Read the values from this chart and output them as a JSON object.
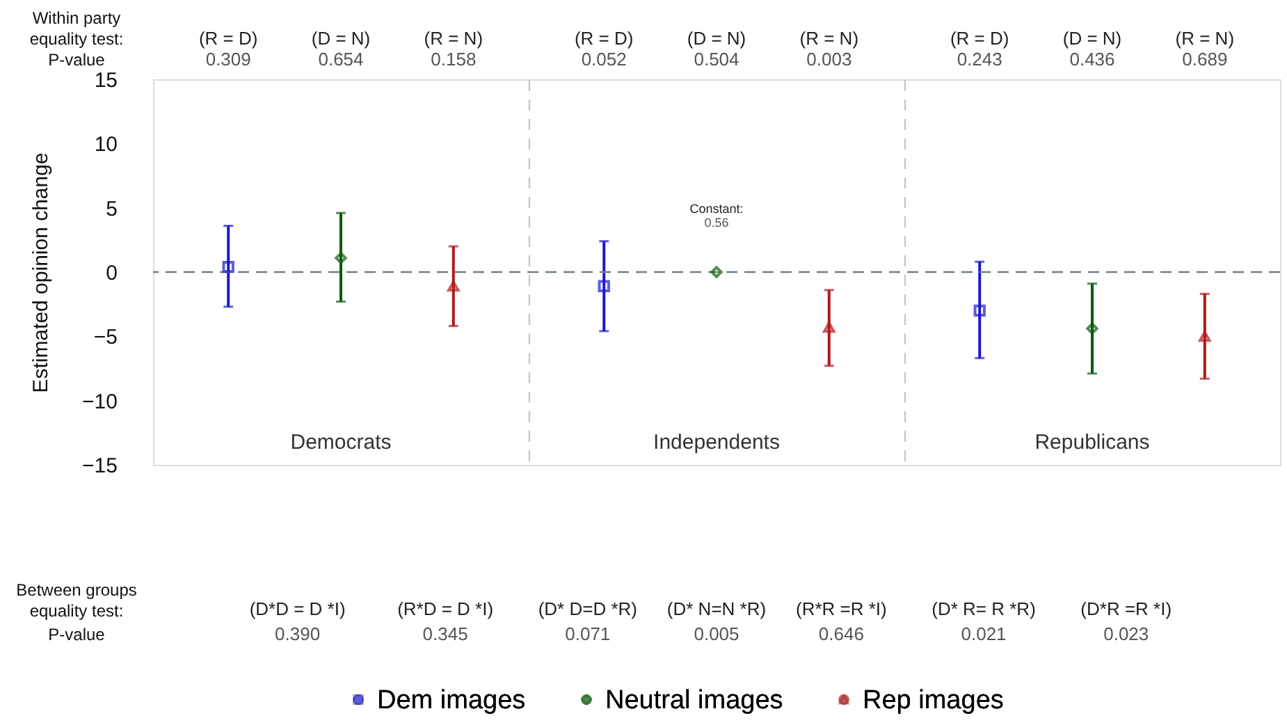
{
  "chart_data": {
    "type": "scatter",
    "ylabel": "Estimated opinion change",
    "categories": [
      "Democrats",
      "Independents",
      "Republicans"
    ],
    "series": [
      {
        "name": "Dem images",
        "color": "#1a1acc",
        "marker": "square",
        "values": [
          0.4,
          -1.1,
          -3.0
        ],
        "errors": [
          [
            -2.7,
            3.6
          ],
          [
            -4.6,
            2.4
          ],
          [
            -6.7,
            0.8
          ]
        ]
      },
      {
        "name": "Neutral images",
        "color": "#0d5c0d",
        "marker": "diamond",
        "values": [
          1.1,
          0,
          -4.4
        ],
        "errors": [
          [
            -2.3,
            4.6
          ],
          null,
          [
            -7.9,
            -0.9
          ]
        ]
      },
      {
        "name": "Rep images",
        "color": "#b01818",
        "marker": "triangle",
        "values": [
          -1.1,
          -4.3,
          -5.0
        ],
        "errors": [
          [
            -4.2,
            2.0
          ],
          [
            -7.3,
            -1.4
          ],
          [
            -8.3,
            -1.7
          ]
        ]
      }
    ],
    "ylim": [
      -15,
      15
    ],
    "yticks": [
      -15,
      -10,
      -5,
      0,
      5,
      10,
      15
    ],
    "ref_lines": [
      {
        "axis": "y",
        "value": 0,
        "color": "#6a857a",
        "line_style": "dashed"
      }
    ],
    "grid": "x",
    "legend": "bottom",
    "annotations": [
      "Within party",
      "equality test:",
      "P-value",
      "(R = D)",
      "0.309",
      "(D = N)",
      "0.654",
      "(R = N)",
      "0.158",
      "(R = D)",
      "0.052",
      "(D = N)",
      "0.504",
      "(R = N)",
      "0.003",
      "(R = D)",
      "0.243",
      "(D = N)",
      "0.436",
      "(R = N)",
      "0.689",
      "Between groups",
      "equality test:",
      "P-value",
      "(D*D = D *I)",
      "0.390",
      "(R*D = D *I)",
      "0.345",
      "(D* D=D *R)",
      "0.071",
      "(D* N=N *R)",
      "0.005",
      "(R*R =R *I)",
      "0.646",
      "(D* R= R *R)",
      "0.021",
      "(D*R =R *I)",
      "0.023",
      "Constant:",
      "0.56"
    ]
  }
}
